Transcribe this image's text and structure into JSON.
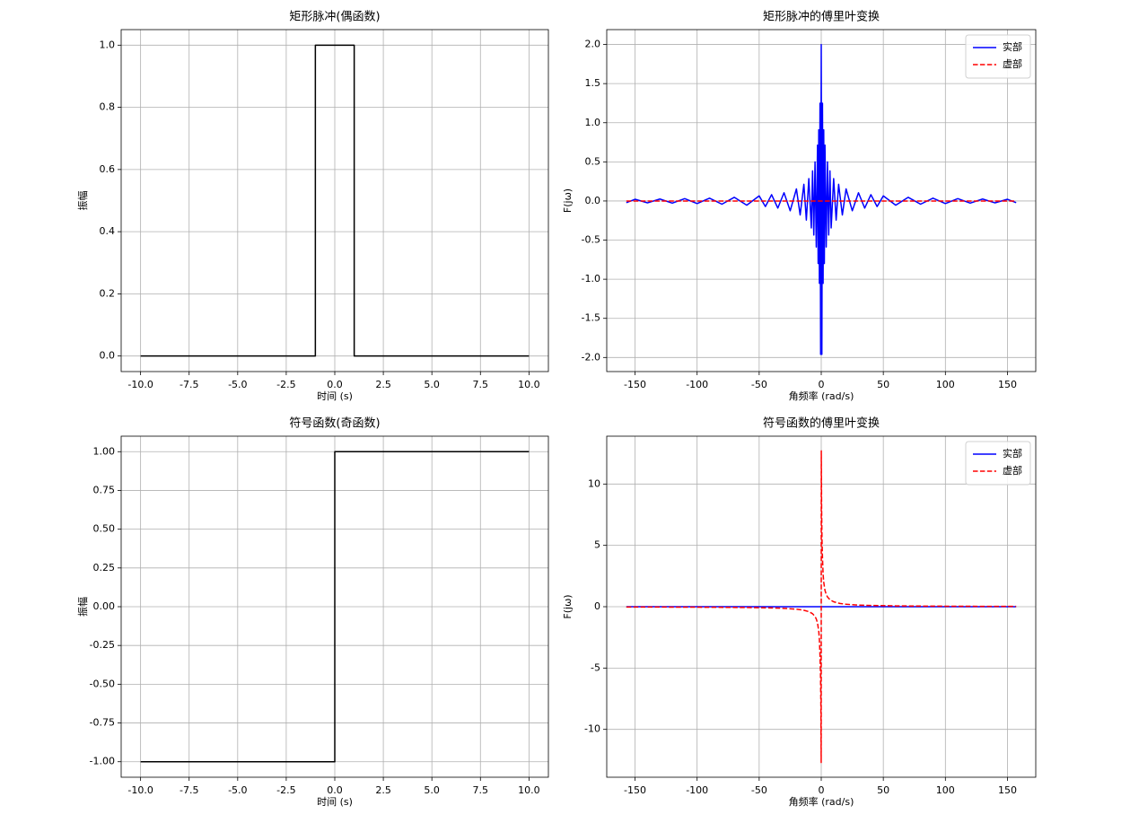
{
  "chart_data": [
    {
      "type": "line",
      "title": "矩形脉冲(偶函数)",
      "xlabel": "时间 (s)",
      "ylabel": "振幅",
      "x": [
        -10,
        -1,
        -1,
        1,
        1,
        10
      ],
      "series": [
        {
          "color": "#000000",
          "linestyle": "solid",
          "values": [
            0,
            0,
            1,
            1,
            0,
            0
          ]
        }
      ],
      "xlim": [
        -11,
        11
      ],
      "ylim": [
        -0.05,
        1.05
      ],
      "xticks": [
        {
          "value": -10,
          "label": "-10.0"
        },
        -7.5,
        {
          "value": -5,
          "label": "-5.0"
        },
        -2.5,
        {
          "value": 0,
          "label": "0.0"
        },
        2.5,
        {
          "value": 5,
          "label": "5.0"
        },
        7.5,
        {
          "value": 10,
          "label": "10.0"
        }
      ],
      "yticks": [
        {
          "value": 0,
          "label": "0.0"
        },
        0.2,
        0.4,
        0.6,
        0.8,
        {
          "value": 1,
          "label": "1.0"
        }
      ],
      "grid": true
    },
    {
      "type": "line",
      "title": "矩形脉冲的傅里叶变换",
      "xlabel": "角频率 (rad/s)",
      "ylabel": "F(jω)",
      "x": [
        -157,
        -150,
        -140,
        -130,
        -120,
        -110,
        -100,
        -90,
        -80,
        -70,
        -60,
        -50,
        -45,
        -40,
        -35,
        -30,
        -25,
        -20,
        -17,
        -14,
        -12,
        -10,
        -8,
        -7,
        -6,
        -5,
        -4,
        -3,
        -2.5,
        -2,
        -1.5,
        -1,
        -0.5,
        0,
        0.5,
        1,
        1.5,
        2,
        2.5,
        3,
        4,
        5,
        6,
        7,
        8,
        10,
        12,
        14,
        17,
        20,
        25,
        30,
        35,
        40,
        45,
        50,
        60,
        70,
        80,
        90,
        100,
        110,
        120,
        130,
        140,
        150,
        157
      ],
      "series": [
        {
          "name": "实部",
          "color": "#0000ff",
          "linestyle": "solid",
          "values": [
            -0.021,
            0.022,
            -0.024,
            0.025,
            -0.027,
            0.03,
            -0.033,
            0.036,
            -0.041,
            0.047,
            -0.054,
            0.065,
            -0.071,
            0.08,
            -0.091,
            0.105,
            -0.125,
            0.154,
            -0.179,
            0.213,
            -0.244,
            0.286,
            -0.345,
            0.385,
            -0.435,
            0.5,
            -0.588,
            0.714,
            -0.8,
            0.909,
            -1.053,
            1.25,
            -1.96,
            2.0,
            -1.96,
            1.25,
            -1.053,
            0.909,
            -0.8,
            0.714,
            -0.588,
            0.5,
            -0.435,
            0.385,
            -0.345,
            0.286,
            -0.244,
            0.213,
            -0.179,
            0.154,
            -0.125,
            0.105,
            -0.091,
            0.08,
            -0.071,
            0.065,
            -0.054,
            0.047,
            -0.041,
            0.036,
            -0.033,
            0.03,
            -0.027,
            0.025,
            -0.024,
            0.022,
            -0.021
          ]
        },
        {
          "name": "虚部",
          "color": "#ff0000",
          "linestyle": "dashed",
          "values": [
            0,
            0,
            0,
            0,
            0,
            0,
            0,
            0,
            0,
            0,
            0,
            0,
            0,
            0,
            0,
            0,
            0,
            0,
            0,
            0,
            0,
            0,
            0,
            0,
            0,
            0,
            0,
            0,
            0,
            0,
            0,
            0,
            0,
            0,
            0,
            0,
            0,
            0,
            0,
            0,
            0,
            0,
            0,
            0,
            0,
            0,
            0,
            0,
            0,
            0,
            0,
            0,
            0,
            0,
            0,
            0,
            0,
            0,
            0,
            0,
            0,
            0,
            0,
            0,
            0,
            0,
            0
          ]
        }
      ],
      "xlim": [
        -172.8,
        172.8
      ],
      "ylim": [
        -2.18,
        2.19
      ],
      "xticks": [
        -150,
        -100,
        -50,
        0,
        50,
        100,
        150
      ],
      "yticks": [
        {
          "value": -2,
          "label": "-2.0"
        },
        -1.5,
        {
          "value": -1,
          "label": "-1.0"
        },
        -0.5,
        {
          "value": 0,
          "label": "0.0"
        },
        0.5,
        {
          "value": 1,
          "label": "1.0"
        },
        1.5,
        {
          "value": 2,
          "label": "2.0"
        }
      ],
      "grid": true,
      "legend": "upper right"
    },
    {
      "type": "line",
      "title": "符号函数(奇函数)",
      "xlabel": "时间 (s)",
      "ylabel": "振幅",
      "x": [
        -10,
        0,
        0,
        10
      ],
      "series": [
        {
          "color": "#000000",
          "linestyle": "solid",
          "values": [
            -1,
            -1,
            1,
            1
          ]
        }
      ],
      "xlim": [
        -11,
        11
      ],
      "ylim": [
        -1.1,
        1.1
      ],
      "xticks": [
        {
          "value": -10,
          "label": "-10.0"
        },
        -7.5,
        {
          "value": -5,
          "label": "-5.0"
        },
        -2.5,
        {
          "value": 0,
          "label": "0.0"
        },
        2.5,
        {
          "value": 5,
          "label": "5.0"
        },
        7.5,
        {
          "value": 10,
          "label": "10.0"
        }
      ],
      "yticks": [
        {
          "value": -1,
          "label": "-1.00"
        },
        -0.75,
        {
          "value": -0.5,
          "label": "-0.50"
        },
        -0.25,
        {
          "value": 0,
          "label": "0.00"
        },
        0.25,
        {
          "value": 0.5,
          "label": "0.50"
        },
        0.75,
        {
          "value": 1,
          "label": "1.00"
        }
      ],
      "grid": true
    },
    {
      "type": "line",
      "title": "符号函数的傅里叶变换",
      "xlabel": "角频率 (rad/s)",
      "ylabel": "F(jω)",
      "x": [
        -157,
        -120,
        -90,
        -60,
        -40,
        -30,
        -20,
        -15,
        -10,
        -7,
        -5,
        -4,
        -3,
        -2,
        -1.5,
        -1,
        -0.6,
        -0.3,
        -0.05,
        0.05,
        0.3,
        0.6,
        1,
        1.5,
        2,
        3,
        4,
        5,
        7,
        10,
        15,
        20,
        30,
        40,
        60,
        90,
        120,
        157
      ],
      "series": [
        {
          "name": "实部",
          "color": "#0000ff",
          "linestyle": "solid",
          "values": [
            0,
            0,
            0,
            0,
            0,
            0,
            0,
            0,
            0,
            0,
            0,
            0,
            0,
            0,
            0,
            0,
            0,
            0,
            0,
            0,
            0,
            0,
            0,
            0,
            0,
            0,
            0,
            0,
            0,
            0,
            0,
            0,
            0,
            0,
            0,
            0,
            0,
            0
          ]
        },
        {
          "name": "虚部",
          "color": "#ff0000",
          "linestyle": "dashed",
          "values": [
            -0.025,
            -0.033,
            -0.044,
            -0.067,
            -0.1,
            -0.133,
            -0.2,
            -0.267,
            -0.4,
            -0.571,
            -0.8,
            -1.0,
            -1.333,
            -2.0,
            -2.667,
            -4.0,
            -5.5,
            -8.0,
            -12.7,
            12.7,
            8.0,
            5.5,
            4.0,
            2.667,
            2.0,
            1.333,
            1.0,
            0.8,
            0.571,
            0.4,
            0.267,
            0.2,
            0.133,
            0.1,
            0.067,
            0.044,
            0.033,
            0.025
          ]
        }
      ],
      "xlim": [
        -172.8,
        172.8
      ],
      "ylim": [
        -13.9,
        13.9
      ],
      "xticks": [
        -150,
        -100,
        -50,
        0,
        50,
        100,
        150
      ],
      "yticks": [
        -10,
        -5,
        0,
        5,
        10
      ],
      "grid": true,
      "legend": "upper right"
    }
  ]
}
